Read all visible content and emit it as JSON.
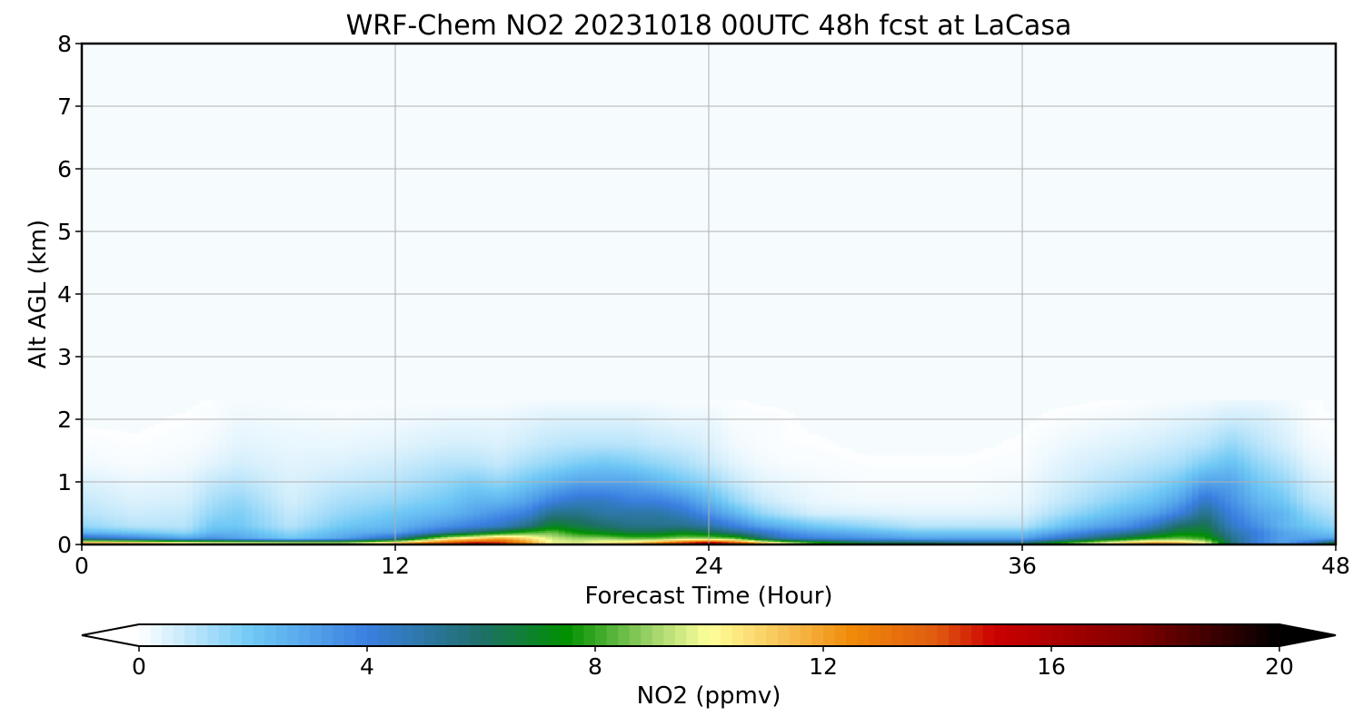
{
  "chart_data": {
    "type": "heatmap",
    "title": "WRF-Chem NO2  20231018 00UTC 48h fcst at LaCasa",
    "xlabel": "Forecast Time (Hour)",
    "ylabel": "Alt AGL (km)",
    "xlim": [
      0,
      48
    ],
    "ylim": [
      0,
      8
    ],
    "x_ticks": [
      "0",
      "12",
      "24",
      "36",
      "48"
    ],
    "y_ticks": [
      "0",
      "1",
      "2",
      "3",
      "4",
      "5",
      "6",
      "7",
      "8"
    ],
    "grid": true,
    "units": "ppmv",
    "colorbar": {
      "label": "NO2  (ppmv)",
      "range": [
        0,
        20
      ],
      "ticks": [
        "0",
        "4",
        "8",
        "12",
        "16",
        "20"
      ],
      "extend": "both",
      "colors": {
        "0": "#ffffff",
        "2": "#6fc8f5",
        "4": "#3a7fe0",
        "6": "#1f6f6a",
        "7.5": "#009000",
        "9": "#9fd46a",
        "10": "#ffff9a",
        "11.5": "#f6b94a",
        "12.5": "#f08a08",
        "14": "#e05a10",
        "15": "#cc0000",
        "17.5": "#800000",
        "20": "#000000"
      }
    },
    "x_hours": [
      0,
      2,
      4,
      5,
      6,
      8,
      10,
      12,
      14,
      15,
      16,
      17,
      18,
      19,
      20,
      21,
      22,
      23,
      24,
      25,
      26,
      27,
      28,
      30,
      32,
      34,
      36,
      38,
      40,
      41,
      42,
      43,
      44,
      45,
      46,
      47,
      48
    ],
    "z_km": [
      0,
      0.1,
      0.2,
      0.3,
      0.5,
      0.7,
      1.0,
      1.3,
      1.6,
      2.0,
      2.3
    ],
    "no2_ppmv": [
      [
        15,
        15,
        14,
        13,
        13,
        13,
        12,
        14,
        16,
        17,
        16,
        13,
        10,
        10,
        11,
        12,
        14,
        17,
        19,
        17,
        14,
        12,
        10,
        8,
        8,
        7,
        7,
        10,
        13,
        14,
        13,
        11,
        6,
        4,
        3,
        5,
        9
      ],
      [
        5,
        4,
        3,
        3.5,
        3,
        2,
        3,
        5,
        10,
        11,
        12,
        11,
        9.5,
        9,
        9,
        8.5,
        8.5,
        9,
        9,
        8.5,
        6,
        4.5,
        4,
        3.5,
        3,
        3,
        3,
        5,
        7,
        8,
        8.5,
        8,
        5.5,
        4,
        3,
        3,
        3
      ],
      [
        2.5,
        2,
        1.5,
        2.5,
        2.5,
        1.5,
        2.5,
        3,
        5,
        6,
        7,
        8,
        8.5,
        7.5,
        7,
        6.5,
        6.5,
        7,
        6.5,
        5.5,
        4.5,
        3.5,
        3,
        2.5,
        2,
        2,
        2,
        3.5,
        5,
        6,
        7,
        7,
        5,
        4,
        3,
        2.5,
        2
      ],
      [
        1.5,
        1,
        1,
        2,
        2,
        1,
        2,
        2.5,
        3.5,
        4,
        4.5,
        5.5,
        7,
        6.5,
        6,
        5.5,
        5.5,
        5.5,
        5,
        4,
        3,
        2.5,
        2,
        1.5,
        1,
        1,
        1,
        2.5,
        3.5,
        4.5,
        6,
        6.5,
        4.5,
        3.5,
        2.5,
        2,
        1.5
      ],
      [
        1,
        0.7,
        0.8,
        1.5,
        1.8,
        0.8,
        1.5,
        2,
        2.5,
        3,
        3.5,
        4,
        5.5,
        5.5,
        5,
        5,
        5,
        4.5,
        3.5,
        2.5,
        1.5,
        1,
        0.6,
        0.5,
        0.4,
        0.4,
        0.5,
        1.5,
        2.5,
        3,
        4,
        5.5,
        4,
        3,
        2.5,
        1.5,
        1
      ],
      [
        0.8,
        0.5,
        0.6,
        1.2,
        1.5,
        0.6,
        1.2,
        1.5,
        2,
        2.5,
        2.5,
        3,
        4,
        4.5,
        4.5,
        4,
        4,
        3.5,
        2.5,
        1.5,
        0.8,
        0.5,
        0.3,
        0.2,
        0.2,
        0.2,
        0.3,
        1,
        1.8,
        2.2,
        3,
        4.5,
        3.5,
        2.5,
        2,
        1,
        0.7
      ],
      [
        0.5,
        0.3,
        0.4,
        0.8,
        1,
        0.5,
        0.8,
        1,
        1.5,
        1.8,
        1.5,
        2,
        2.5,
        3,
        3,
        3,
        2.5,
        2,
        1.5,
        0.8,
        0.4,
        0.3,
        0.2,
        0.1,
        0.1,
        0.1,
        0.2,
        0.7,
        1.2,
        1.5,
        2,
        3,
        3,
        2,
        1.5,
        0.7,
        0.4
      ],
      [
        0.2,
        0.1,
        0.2,
        0.4,
        0.6,
        0.4,
        0.5,
        0.7,
        1,
        1,
        0.8,
        1.2,
        1.5,
        1.8,
        2,
        1.8,
        1.5,
        1.2,
        0.8,
        0.4,
        0.2,
        0.1,
        0.1,
        0.05,
        0.05,
        0.05,
        0.1,
        0.5,
        0.8,
        1,
        1.2,
        1.8,
        2.2,
        1.5,
        1,
        0.4,
        0.2
      ],
      [
        0.1,
        0.05,
        0.1,
        0.2,
        0.4,
        0.3,
        0.3,
        0.4,
        0.6,
        0.6,
        0.5,
        0.7,
        0.9,
        1,
        1,
        1,
        0.8,
        0.7,
        0.5,
        0.2,
        0.1,
        0.05,
        0.05,
        0,
        0,
        0,
        0.05,
        0.3,
        0.5,
        0.6,
        0.8,
        1,
        1.5,
        1,
        0.6,
        0.2,
        0.1
      ],
      [
        0,
        0,
        0.05,
        0.1,
        0.25,
        0.2,
        0.15,
        0.2,
        0.3,
        0.3,
        0.3,
        0.4,
        0.5,
        0.5,
        0.5,
        0.5,
        0.4,
        0.3,
        0.3,
        0.1,
        0.1,
        0.05,
        0,
        0,
        0,
        0,
        0,
        0.1,
        0.2,
        0.3,
        0.4,
        0.5,
        0.7,
        0.6,
        0.4,
        0.1,
        0
      ],
      [
        0,
        0,
        0,
        0.05,
        0.15,
        0.1,
        0.05,
        0.1,
        0.1,
        0.1,
        0.1,
        0.15,
        0.2,
        0.2,
        0.2,
        0.2,
        0.15,
        0.1,
        0.1,
        0.05,
        0,
        0,
        0,
        0,
        0,
        0,
        0,
        0,
        0.05,
        0.1,
        0.15,
        0.2,
        0.3,
        0.3,
        0.2,
        0.05,
        0
      ]
    ]
  }
}
